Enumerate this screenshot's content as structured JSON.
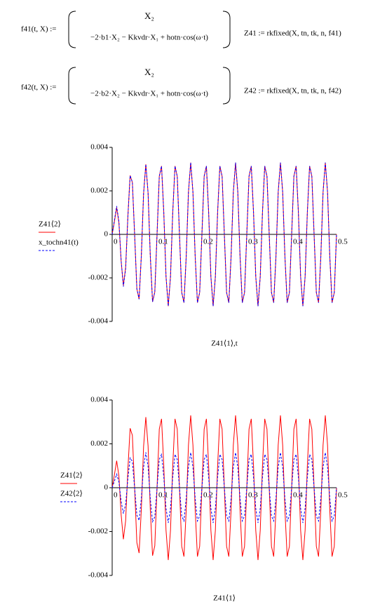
{
  "formulas": [
    {
      "lhs": "f41(t, X) :=",
      "row1": "X₂",
      "row2": "−2·b1·X₂ − Kkvdr·X₁ + hotn·cos(ω·t)",
      "call": "Z41 := rkfixed(X, tn, tk, n, f41)"
    },
    {
      "lhs": "f42(t, X) :=",
      "row1": "X₂",
      "row2": "−2·b2·X₂ − Kkvdr·X₁ + hotn·cos(ω·t)",
      "call": "Z42 := rkfixed(X, tn, tk, n, f42)"
    }
  ],
  "chart_data": [
    {
      "type": "line",
      "x_label": "Z41⟨1⟩,t",
      "x": [
        0,
        0.005,
        0.01,
        0.015,
        0.02,
        0.025,
        0.03,
        0.035,
        0.04,
        0.045,
        0.05,
        0.055,
        0.06,
        0.065,
        0.07,
        0.075,
        0.08,
        0.085,
        0.09,
        0.095,
        0.1,
        0.105,
        0.11,
        0.115,
        0.12,
        0.125,
        0.13,
        0.135,
        0.14,
        0.145,
        0.15,
        0.155,
        0.16,
        0.165,
        0.17,
        0.175,
        0.18,
        0.185,
        0.19,
        0.195,
        0.2,
        0.205,
        0.21,
        0.215,
        0.22,
        0.225,
        0.23,
        0.235,
        0.24,
        0.245,
        0.25,
        0.255,
        0.26,
        0.265,
        0.27,
        0.275,
        0.28,
        0.285,
        0.29,
        0.295,
        0.3,
        0.305,
        0.31,
        0.315,
        0.32,
        0.325,
        0.33,
        0.335,
        0.34,
        0.345,
        0.35,
        0.355,
        0.36,
        0.365,
        0.37,
        0.375,
        0.38,
        0.385,
        0.39,
        0.395,
        0.4,
        0.405,
        0.41,
        0.415,
        0.42,
        0.425,
        0.43,
        0.435,
        0.44,
        0.445,
        0.45,
        0.455,
        0.46,
        0.465,
        0.47,
        0.475,
        0.48,
        0.485,
        0.49,
        0.495,
        0.5
      ],
      "series": [
        {
          "name": "Z41⟨2⟩",
          "color": "#ff0000",
          "line_style": "solid",
          "values": [
            0,
            0.00059,
            0.00123,
            0.00054,
            -0.00123,
            -0.00235,
            -0.00151,
            0.00084,
            0.00271,
            0.00239,
            0,
            -0.0025,
            -0.00298,
            -0.00098,
            0.00188,
            0.00322,
            0.00191,
            -0.00101,
            -0.0031,
            -0.00265,
            0,
            0.00267,
            0.00314,
            0.00102,
            -0.00194,
            -0.0033,
            -0.00194,
            0.00102,
            0.00314,
            0.00267,
            0,
            -0.00267,
            -0.00314,
            -0.00102,
            0.00194,
            0.0033,
            0.00194,
            -0.00102,
            -0.00314,
            -0.00267,
            0,
            0.00267,
            0.00314,
            0.00102,
            -0.00194,
            -0.0033,
            -0.00194,
            0.00102,
            0.00314,
            0.00267,
            0,
            -0.00267,
            -0.00314,
            -0.00102,
            0.00194,
            0.0033,
            0.00194,
            -0.00102,
            -0.00314,
            -0.00267,
            0,
            0.00267,
            0.00314,
            0.00102,
            -0.00194,
            -0.0033,
            -0.00194,
            0.00102,
            0.00314,
            0.00267,
            0,
            -0.00267,
            -0.00314,
            -0.00102,
            0.00194,
            0.0033,
            0.00194,
            -0.00102,
            -0.00314,
            -0.00267,
            0,
            0.00267,
            0.00314,
            0.00102,
            -0.00194,
            -0.0033,
            -0.00194,
            0.00102,
            0.00314,
            0.00267,
            0,
            -0.00267,
            -0.00314,
            -0.00102,
            0.00194,
            0.0033,
            0.00194,
            -0.00102,
            -0.00314,
            -0.00267,
            0
          ]
        },
        {
          "name": "x_tochn41(t)",
          "color": "#0000ff",
          "line_style": "dashed",
          "values": [
            0,
            0.00065,
            0.0013,
            0.0006,
            -0.0012,
            -0.0024,
            -0.0016,
            0.0008,
            0.0027,
            0.0024,
            0,
            -0.0025,
            -0.00298,
            -0.00098,
            0.00188,
            0.00322,
            0.00191,
            -0.00101,
            -0.0031,
            -0.00265,
            0,
            0.00267,
            0.00314,
            0.00102,
            -0.00194,
            -0.0033,
            -0.00194,
            0.00102,
            0.00314,
            0.00267,
            0,
            -0.00267,
            -0.00314,
            -0.00102,
            0.00194,
            0.0033,
            0.00194,
            -0.00102,
            -0.00314,
            -0.00267,
            0,
            0.00267,
            0.00314,
            0.00102,
            -0.00194,
            -0.0033,
            -0.00194,
            0.00102,
            0.00314,
            0.00267,
            0,
            -0.00267,
            -0.00314,
            -0.00102,
            0.00194,
            0.0033,
            0.00194,
            -0.00102,
            -0.00314,
            -0.00267,
            0,
            0.00267,
            0.00314,
            0.00102,
            -0.00194,
            -0.0033,
            -0.00194,
            0.00102,
            0.00314,
            0.00267,
            0,
            -0.00267,
            -0.00314,
            -0.00102,
            0.00194,
            0.0033,
            0.00194,
            -0.00102,
            -0.00314,
            -0.00267,
            0,
            0.00267,
            0.00314,
            0.00102,
            -0.00194,
            -0.0033,
            -0.00194,
            0.00102,
            0.00314,
            0.00267,
            0,
            -0.00267,
            -0.00314,
            -0.00102,
            0.00194,
            0.0033,
            0.00194,
            -0.00102,
            -0.00314,
            -0.00267,
            0
          ]
        }
      ],
      "xlim": [
        0,
        0.5
      ],
      "xticks": [
        0,
        0.1,
        0.2,
        0.3,
        0.4,
        0.5
      ],
      "ylim": [
        -0.004,
        0.004
      ],
      "yticks": [
        -0.004,
        -0.002,
        0,
        0.002,
        0.004
      ],
      "grid": false,
      "legend": "left"
    },
    {
      "type": "line",
      "x_label": "Z41⟨1⟩",
      "x": [
        0,
        0.005,
        0.01,
        0.015,
        0.02,
        0.025,
        0.03,
        0.035,
        0.04,
        0.045,
        0.05,
        0.055,
        0.06,
        0.065,
        0.07,
        0.075,
        0.08,
        0.085,
        0.09,
        0.095,
        0.1,
        0.105,
        0.11,
        0.115,
        0.12,
        0.125,
        0.13,
        0.135,
        0.14,
        0.145,
        0.15,
        0.155,
        0.16,
        0.165,
        0.17,
        0.175,
        0.18,
        0.185,
        0.19,
        0.195,
        0.2,
        0.205,
        0.21,
        0.215,
        0.22,
        0.225,
        0.23,
        0.235,
        0.24,
        0.245,
        0.25,
        0.255,
        0.26,
        0.265,
        0.27,
        0.275,
        0.28,
        0.285,
        0.29,
        0.295,
        0.3,
        0.305,
        0.31,
        0.315,
        0.32,
        0.325,
        0.33,
        0.335,
        0.34,
        0.345,
        0.35,
        0.355,
        0.36,
        0.365,
        0.37,
        0.375,
        0.38,
        0.385,
        0.39,
        0.395,
        0.4,
        0.405,
        0.41,
        0.415,
        0.42,
        0.425,
        0.43,
        0.435,
        0.44,
        0.445,
        0.45,
        0.455,
        0.46,
        0.465,
        0.47,
        0.475,
        0.48,
        0.485,
        0.49,
        0.495,
        0.5
      ],
      "series": [
        {
          "name": "Z41⟨2⟩",
          "color": "#ff0000",
          "line_style": "solid",
          "values": [
            0,
            0.00059,
            0.00123,
            0.00054,
            -0.00123,
            -0.00235,
            -0.00151,
            0.00084,
            0.00271,
            0.00239,
            0,
            -0.0025,
            -0.00298,
            -0.00098,
            0.00188,
            0.00322,
            0.00191,
            -0.00101,
            -0.0031,
            -0.00265,
            0,
            0.00267,
            0.00314,
            0.00102,
            -0.00194,
            -0.0033,
            -0.00194,
            0.00102,
            0.00314,
            0.00267,
            0,
            -0.00267,
            -0.00314,
            -0.00102,
            0.00194,
            0.0033,
            0.00194,
            -0.00102,
            -0.00314,
            -0.00267,
            0,
            0.00267,
            0.00314,
            0.00102,
            -0.00194,
            -0.0033,
            -0.00194,
            0.00102,
            0.00314,
            0.00267,
            0,
            -0.00267,
            -0.00314,
            -0.00102,
            0.00194,
            0.0033,
            0.00194,
            -0.00102,
            -0.00314,
            -0.00267,
            0,
            0.00267,
            0.00314,
            0.00102,
            -0.00194,
            -0.0033,
            -0.00194,
            0.00102,
            0.00314,
            0.00267,
            0,
            -0.00267,
            -0.00314,
            -0.00102,
            0.00194,
            0.0033,
            0.00194,
            -0.00102,
            -0.00314,
            -0.00267,
            0,
            0.00267,
            0.00314,
            0.00102,
            -0.00194,
            -0.0033,
            -0.00194,
            0.00102,
            0.00314,
            0.00267,
            0,
            -0.00267,
            -0.00314,
            -0.00102,
            0.00194,
            0.0033,
            0.00194,
            -0.00102,
            -0.00314,
            -0.00267,
            0
          ]
        },
        {
          "name": "Z42⟨2⟩",
          "color": "#0000ff",
          "line_style": "dashed",
          "values": [
            0,
            0.0003,
            0.00062,
            0.00027,
            -0.00062,
            -0.00118,
            -0.00076,
            0.00042,
            0.00136,
            0.0012,
            0,
            -0.00125,
            -0.00149,
            -0.00049,
            0.00094,
            0.00161,
            0.00096,
            -0.0005,
            -0.00155,
            -0.00133,
            0,
            0.00129,
            0.00152,
            0.00049,
            -0.00094,
            -0.0016,
            -0.00094,
            0.00049,
            0.00152,
            0.00129,
            0,
            -0.00129,
            -0.00152,
            -0.00049,
            0.00094,
            0.0016,
            0.00094,
            -0.00049,
            -0.00152,
            -0.00129,
            0,
            0.00129,
            0.00152,
            0.00049,
            -0.00094,
            -0.0016,
            -0.00094,
            0.00049,
            0.00152,
            0.00129,
            0,
            -0.00129,
            -0.00152,
            -0.00049,
            0.00094,
            0.0016,
            0.00094,
            -0.00049,
            -0.00152,
            -0.00129,
            0,
            0.00129,
            0.00152,
            0.00049,
            -0.00094,
            -0.0016,
            -0.00094,
            0.00049,
            0.00152,
            0.00129,
            0,
            -0.00129,
            -0.00152,
            -0.00049,
            0.00094,
            0.0016,
            0.00094,
            -0.00049,
            -0.00152,
            -0.00129,
            0,
            0.00129,
            0.00152,
            0.00049,
            -0.00094,
            -0.0016,
            -0.00094,
            0.00049,
            0.00152,
            0.00129,
            0,
            -0.00129,
            -0.00152,
            -0.00049,
            0.00094,
            0.0016,
            0.00094,
            -0.00049,
            -0.00152,
            -0.00129,
            0
          ]
        }
      ],
      "xlim": [
        0,
        0.5
      ],
      "xticks": [
        0,
        0.1,
        0.2,
        0.3,
        0.4,
        0.5
      ],
      "ylim": [
        -0.004,
        0.004
      ],
      "yticks": [
        -0.004,
        -0.002,
        0,
        0.002,
        0.004
      ],
      "grid": false,
      "legend": "left"
    }
  ]
}
